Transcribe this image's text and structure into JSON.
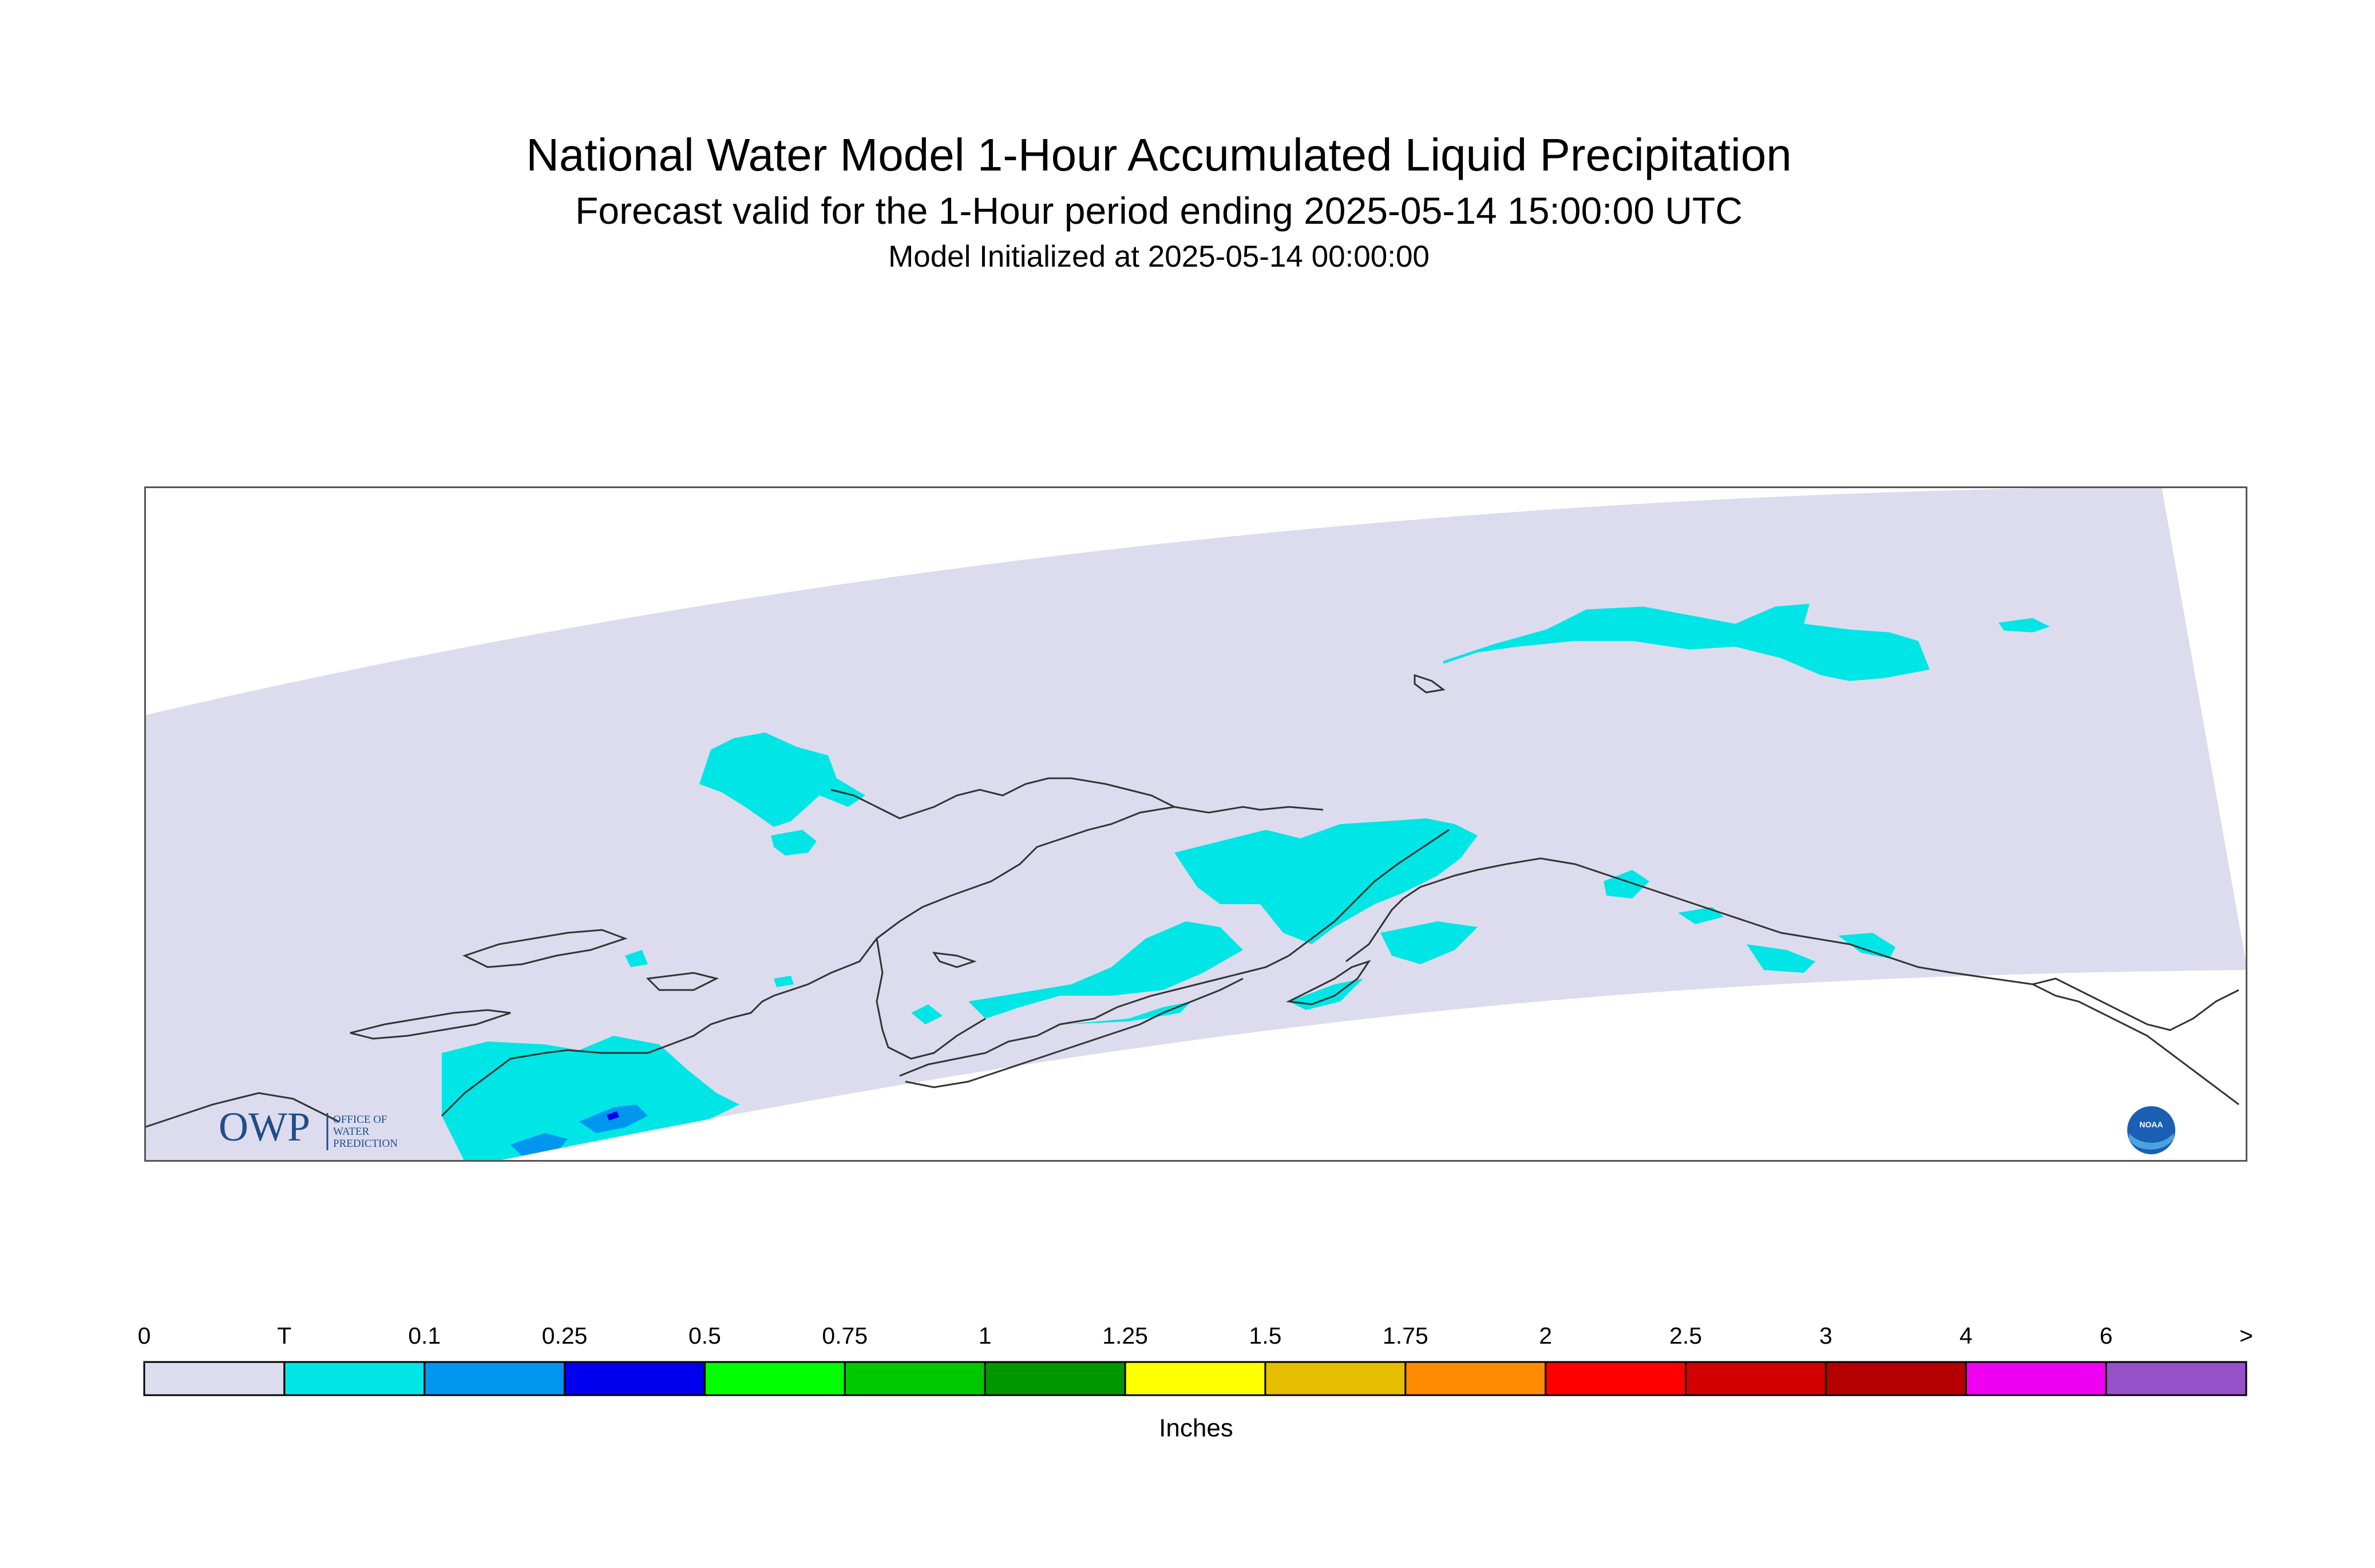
{
  "header": {
    "title": "National Water Model 1-Hour Accumulated Liquid Precipitation",
    "subtitle": "Forecast valid for the 1-Hour period ending 2025-05-14 15:00:00 UTC",
    "init": "Model Initialized at 2025-05-14 00:00:00"
  },
  "map": {
    "region": "Alaska",
    "domain_color": "#dcdcee",
    "coastline_color": "#333333",
    "precip_classes_present": [
      "T",
      "0.1",
      "0.25"
    ],
    "owp_logo": {
      "mark": "OWP",
      "lines": [
        "OFFICE OF",
        "WATER",
        "PREDICTION"
      ]
    },
    "noaa_logo": {
      "icon": "noaa-logo-icon",
      "text": "NOAA"
    }
  },
  "legend": {
    "unit": "Inches",
    "labels": [
      "0",
      "T",
      "0.1",
      "0.25",
      "0.5",
      "0.75",
      "1",
      "1.25",
      "1.5",
      "1.75",
      "2",
      "2.5",
      "3",
      "4",
      "6",
      ">"
    ],
    "colors": [
      "#dcdcee",
      "#00e6e6",
      "#0096f0",
      "#0000ee",
      "#00ff00",
      "#00c800",
      "#009600",
      "#ffff00",
      "#e6be00",
      "#ff8c00",
      "#ff0000",
      "#d20000",
      "#b40000",
      "#f000f0",
      "#9650c8"
    ]
  }
}
